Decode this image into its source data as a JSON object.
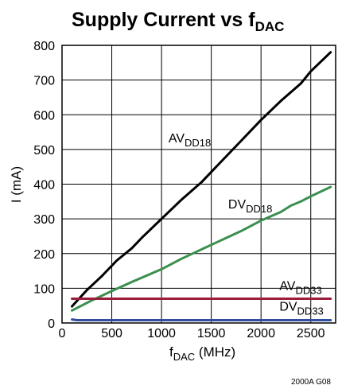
{
  "chart_data": {
    "type": "line",
    "title": {
      "main": "Supply Current vs f",
      "sub": "DAC"
    },
    "xlabel": {
      "main": "f",
      "sub": "DAC",
      "suffix": " (MHz)"
    },
    "ylabel": "I (mA)",
    "xlim": [
      0,
      2750
    ],
    "ylim": [
      0,
      800
    ],
    "xticks": [
      0,
      500,
      1000,
      1500,
      2000,
      2500
    ],
    "yticks": [
      0,
      100,
      200,
      300,
      400,
      500,
      600,
      700,
      800
    ],
    "xtick_labels": [
      "0",
      "500",
      "1000",
      "1500",
      "2000",
      "2500"
    ],
    "ytick_labels": [
      "0",
      "100",
      "200",
      "300",
      "400",
      "500",
      "600",
      "700",
      "800"
    ],
    "grid": true,
    "note": "2000A G08",
    "series": [
      {
        "name": "AVDD18",
        "label": {
          "main": "AV",
          "sub": "DD18"
        },
        "color": "#000000",
        "points": [
          [
            100,
            48
          ],
          [
            250,
            95
          ],
          [
            400,
            135
          ],
          [
            550,
            180
          ],
          [
            700,
            215
          ],
          [
            800,
            245
          ],
          [
            1000,
            300
          ],
          [
            1200,
            355
          ],
          [
            1400,
            405
          ],
          [
            1600,
            465
          ],
          [
            1800,
            525
          ],
          [
            2000,
            585
          ],
          [
            2200,
            640
          ],
          [
            2400,
            690
          ],
          [
            2500,
            725
          ],
          [
            2700,
            780
          ]
        ]
      },
      {
        "name": "DVDD18",
        "label": {
          "main": "DV",
          "sub": "DD18"
        },
        "color": "#3a8f4e",
        "points": [
          [
            100,
            36
          ],
          [
            300,
            65
          ],
          [
            500,
            92
          ],
          [
            700,
            118
          ],
          [
            1000,
            155
          ],
          [
            1200,
            185
          ],
          [
            1500,
            225
          ],
          [
            1800,
            265
          ],
          [
            2000,
            295
          ],
          [
            2200,
            320
          ],
          [
            2300,
            338
          ],
          [
            2400,
            350
          ],
          [
            2500,
            365
          ],
          [
            2700,
            392
          ]
        ]
      },
      {
        "name": "AVDD33",
        "label": {
          "main": "AV",
          "sub": "DD33"
        },
        "color": "#9b1e3c",
        "points": [
          [
            100,
            70
          ],
          [
            2700,
            70
          ]
        ]
      },
      {
        "name": "DVDD33",
        "label": {
          "main": "DV",
          "sub": "DD33"
        },
        "color": "#2f4f9e",
        "points": [
          [
            100,
            10
          ],
          [
            150,
            8
          ],
          [
            2700,
            8
          ]
        ]
      }
    ]
  }
}
